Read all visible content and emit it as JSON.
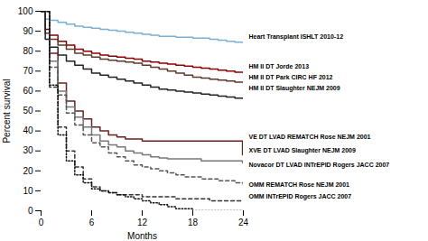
{
  "chart_data": {
    "type": "line",
    "xlabel": "Months",
    "ylabel": "Percent survival",
    "xlim": [
      0,
      24
    ],
    "ylim": [
      0,
      100
    ],
    "xticks": [
      0,
      6,
      12,
      18,
      24
    ],
    "yticks": [
      0,
      10,
      20,
      30,
      40,
      50,
      60,
      70,
      80,
      90,
      100
    ],
    "grid": false,
    "series": [
      {
        "name": "Heart Transplant ISHLT 2010-12",
        "color": "#7ab0d4",
        "line_style": "solid",
        "x": [
          0,
          0.5,
          1,
          2,
          3,
          4,
          5,
          6,
          7,
          8,
          9,
          10,
          11,
          12,
          13,
          14,
          15,
          16,
          17,
          18,
          19,
          20,
          21,
          22,
          23,
          24
        ],
        "values": [
          100,
          96,
          95.5,
          94.5,
          93.5,
          92.5,
          92,
          91.5,
          91,
          90.5,
          90,
          89.5,
          89,
          88.5,
          88,
          87.5,
          87.5,
          87,
          87,
          86.5,
          86.5,
          86,
          85.5,
          85,
          84.5,
          84
        ]
      },
      {
        "name": "HM II DT Jorde 2013",
        "color": "#8b0000",
        "line_style": "solid",
        "x": [
          0,
          0.5,
          1,
          2,
          3,
          4,
          5,
          6,
          7,
          8,
          9,
          10,
          11,
          12,
          13,
          14,
          15,
          16,
          17,
          18,
          19,
          20,
          21,
          22,
          23,
          24
        ],
        "values": [
          100,
          91,
          88,
          85,
          83,
          81,
          80,
          79,
          78,
          77.5,
          77,
          76.5,
          76,
          75,
          74.5,
          74,
          73.5,
          73,
          72.5,
          72,
          71.5,
          71,
          70.5,
          70,
          69.5,
          69
        ]
      },
      {
        "name": "HM II DT Park CIRC HF 2012",
        "color": "#5a3a2a",
        "line_style": "solid",
        "x": [
          0,
          0.5,
          1,
          2,
          3,
          4,
          5,
          6,
          7,
          8,
          9,
          10,
          11,
          12,
          13,
          14,
          15,
          16,
          17,
          18,
          19,
          20,
          21,
          22,
          23,
          24
        ],
        "values": [
          100,
          89,
          86,
          83,
          81,
          79,
          78,
          77,
          76,
          75.5,
          75,
          74.5,
          74,
          73,
          72,
          71,
          70,
          69,
          68,
          67,
          66.5,
          66,
          65.5,
          65,
          64.5,
          64
        ]
      },
      {
        "name": "HM II DT Slaughter NEJM 2009",
        "color": "#222222",
        "line_style": "solid",
        "x": [
          0,
          0.5,
          1,
          2,
          3,
          4,
          5,
          6,
          7,
          8,
          9,
          10,
          11,
          12,
          13,
          14,
          15,
          16,
          17,
          18,
          19,
          20,
          21,
          22,
          23,
          24
        ],
        "values": [
          100,
          86,
          82,
          78,
          75,
          73,
          71,
          69,
          68,
          67,
          66,
          65,
          64,
          63,
          62,
          61,
          60.5,
          60,
          59.5,
          59,
          58.5,
          58,
          57.5,
          57,
          56.5,
          56
        ]
      },
      {
        "name": "VE DT LVAD REMATCH Rose NEJM 2001",
        "color": "#6b2020",
        "line_style": "solid",
        "x": [
          0,
          1,
          2,
          3,
          4,
          5,
          6,
          7,
          8,
          9,
          10,
          11,
          12,
          13,
          14,
          15,
          16,
          17,
          18,
          19,
          20,
          21,
          22,
          23,
          23.9
        ],
        "values": [
          100,
          79,
          64,
          55,
          50,
          46,
          42,
          40,
          38,
          37,
          36,
          36,
          35,
          35,
          35,
          35,
          35,
          35,
          35,
          35,
          35,
          35,
          35,
          35,
          28
        ]
      },
      {
        "name": "XVE DT LVAD Slaughter NEJM 2009",
        "color": "#777777",
        "line_style": "solid",
        "x": [
          0,
          1,
          2,
          3,
          4,
          5,
          6,
          7,
          8,
          9,
          10,
          11,
          12,
          13,
          14,
          15,
          16,
          17,
          18,
          19,
          20,
          21,
          22,
          23,
          23.9
        ],
        "values": [
          100,
          75,
          60,
          52,
          47,
          42,
          38,
          35,
          33,
          32,
          30,
          29,
          28,
          27,
          26.5,
          26,
          26,
          26,
          26,
          25,
          25,
          25,
          25,
          25,
          24
        ]
      },
      {
        "name": "Novacor DT LVAD INTrEPID Rogers JACC 2007",
        "color": "#555555",
        "line_style": "dashed",
        "x": [
          0,
          1,
          2,
          3,
          4,
          5,
          6,
          7,
          8,
          9,
          10,
          11,
          12,
          13,
          14,
          15,
          16,
          17,
          18,
          19,
          20,
          21,
          22,
          23,
          24
        ],
        "values": [
          100,
          72,
          58,
          49,
          43,
          38,
          34,
          32,
          29,
          27,
          25,
          23,
          22,
          21,
          20,
          19,
          18,
          17,
          17,
          16,
          16,
          15,
          15,
          14,
          13
        ]
      },
      {
        "name": "OMM REMATCH Rose NEJM 2001",
        "color": "#333333",
        "line_style": "dashed",
        "x": [
          0,
          1,
          2,
          3,
          4,
          5,
          6,
          7,
          8,
          9,
          10,
          11,
          12,
          13,
          14,
          15,
          16,
          17,
          18,
          19,
          20,
          21,
          22,
          23,
          24
        ],
        "values": [
          100,
          62,
          42,
          30,
          22,
          16,
          12,
          10,
          9,
          8,
          8,
          8,
          7,
          7,
          7,
          7,
          6,
          6,
          6,
          6,
          5,
          5,
          5,
          5,
          5
        ]
      },
      {
        "name": "OMM INTrEPID Rogers JACC 2007",
        "color": "#111111",
        "line_style": "dotted",
        "x": [
          0,
          1,
          2,
          3,
          4,
          5,
          6,
          7,
          8,
          9,
          10,
          11,
          12,
          12.5,
          13,
          14,
          15,
          16,
          17,
          18,
          19,
          20,
          21,
          22,
          23,
          24
        ],
        "values": [
          100,
          63,
          38,
          25,
          18,
          14,
          11,
          10,
          9,
          8,
          7,
          6,
          5,
          5,
          4,
          3,
          2,
          1,
          1,
          0,
          0,
          0,
          0,
          0,
          0,
          0
        ]
      }
    ],
    "annotations": [
      {
        "text": "Heart Transplant ISHLT 2010-12",
        "y": 87
      },
      {
        "text": "HM II DT Jorde 2013",
        "y": 72.5
      },
      {
        "text": "HM II DT Park CIRC HF 2012",
        "y": 67
      },
      {
        "text": "HM II DT Slaughter NEJM 2009",
        "y": 61.5
      },
      {
        "text": "VE DT LVAD REMATCH Rose NEJM 2001",
        "y": 37
      },
      {
        "text": "XVE DT LVAD Slaughter NEJM 2009",
        "y": 30
      },
      {
        "text": "Novacor DT LVAD INTrEPID Rogers JACC 2007",
        "y": 23
      },
      {
        "text": "OMM REMATCH Rose NEJM 2001",
        "y": 13
      },
      {
        "text": "OMM INTrEPID Rogers JACC 2007",
        "y": 7
      }
    ]
  }
}
